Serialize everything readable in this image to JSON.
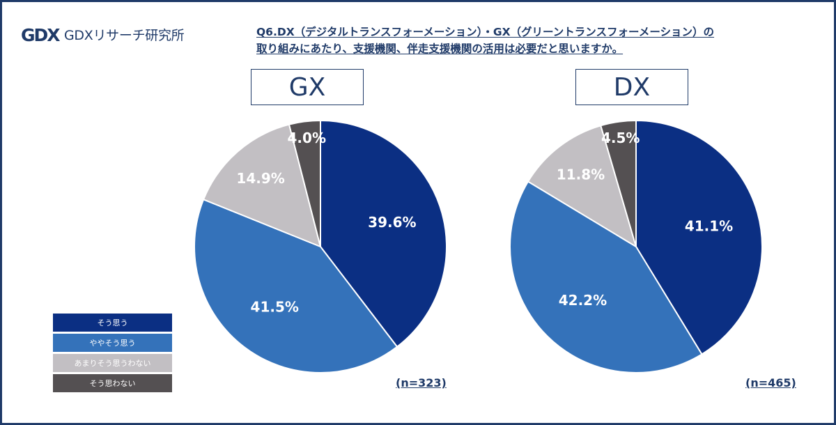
{
  "brand": {
    "name": "GDXリサーチ研究所",
    "mark": "GDX"
  },
  "title_line1": "Q6.DX（デジタルトランスフォーメーション）・GX（グリーントランスフォーメーション）の",
  "title_line2": "取り組みにあたり、支援機関、伴走支援機関の活用は必要だと思いますか。",
  "colors": {
    "frame": "#1f3a68",
    "so_omou": "#0b2f83",
    "yaya": "#3472ba",
    "amari": "#c2bfc3",
    "omowanai": "#545052"
  },
  "chart_data": [
    {
      "type": "pie",
      "title": "GX",
      "n_label": "(n=323)",
      "categories": [
        "そう思う",
        "ややそう思う",
        "あまりそう思うわない",
        "そう思わない"
      ],
      "values": [
        39.6,
        41.5,
        14.9,
        4.0
      ],
      "labels": [
        "39.6%",
        "41.5%",
        "14.9%",
        "4.0%"
      ]
    },
    {
      "type": "pie",
      "title": "DX",
      "n_label": "(n=465)",
      "categories": [
        "そう思う",
        "ややそう思う",
        "あまりそう思うわない",
        "そう思わない"
      ],
      "values": [
        41.1,
        42.2,
        11.8,
        4.5
      ],
      "labels": [
        "41.1%",
        "42.2%",
        "11.8%",
        "4.5%"
      ]
    }
  ],
  "legend": [
    {
      "label": "そう思う",
      "color": "#0b2f83"
    },
    {
      "label": "ややそう思う",
      "color": "#3472ba"
    },
    {
      "label": "あまりそう思うわない",
      "color": "#c2bfc3"
    },
    {
      "label": "そう思わない",
      "color": "#545052"
    }
  ]
}
